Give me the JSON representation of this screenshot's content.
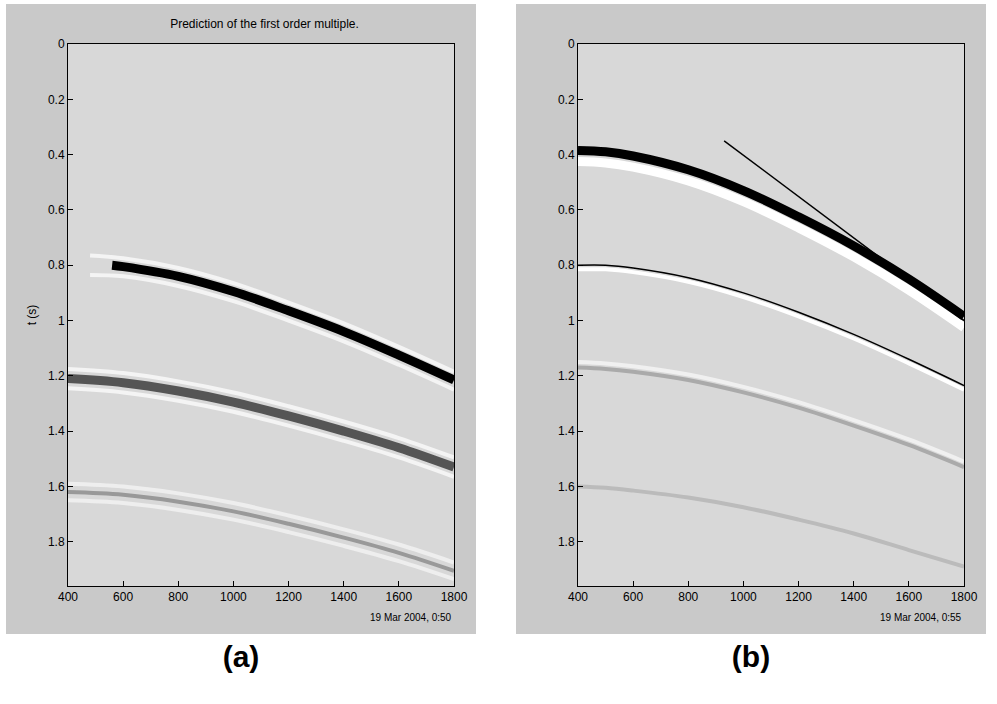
{
  "chart_data": [
    {
      "type": "line",
      "label": "(a)",
      "title": "Prediction of the first order multiple.",
      "ylabel": "t (s)",
      "annotations": [
        "19 Mar 2004, 0:50"
      ],
      "xlim": [
        400,
        1800
      ],
      "xticks": [
        400,
        600,
        800,
        1000,
        1200,
        1400,
        1600,
        1800
      ],
      "ylim": [
        0,
        1.96
      ],
      "yticks": [
        0,
        0.2,
        0.4,
        0.6,
        0.8,
        1,
        1.2,
        1.4,
        1.6,
        1.8
      ],
      "series": [
        {
          "color": "#f4f4f4",
          "line_style": "medium",
          "x": [
            480,
            600,
            800,
            1000,
            1200,
            1400,
            1600,
            1800
          ],
          "values": [
            0.765,
            0.775,
            0.81,
            0.865,
            0.935,
            1.01,
            1.095,
            1.185
          ]
        },
        {
          "color": "#f4f4f4",
          "line_style": "medium",
          "x": [
            480,
            600,
            800,
            1000,
            1200,
            1400,
            1600,
            1800
          ],
          "values": [
            0.835,
            0.84,
            0.875,
            0.93,
            1.0,
            1.075,
            1.16,
            1.25
          ]
        },
        {
          "color": "#000000",
          "line_style": "thick",
          "x": [
            560,
            600,
            800,
            1000,
            1200,
            1400,
            1600,
            1800
          ],
          "values": [
            0.8,
            0.805,
            0.84,
            0.895,
            0.965,
            1.04,
            1.125,
            1.215
          ]
        },
        {
          "color": "#f4f4f4",
          "line_style": "medium",
          "x": [
            400,
            600,
            800,
            1000,
            1200,
            1400,
            1600,
            1800
          ],
          "values": [
            1.175,
            1.19,
            1.22,
            1.26,
            1.31,
            1.365,
            1.425,
            1.495
          ]
        },
        {
          "color": "#f4f4f4",
          "line_style": "medium",
          "x": [
            400,
            600,
            800,
            1000,
            1200,
            1400,
            1600,
            1800
          ],
          "values": [
            1.245,
            1.26,
            1.29,
            1.33,
            1.38,
            1.435,
            1.495,
            1.565
          ]
        },
        {
          "color": "#555555",
          "line_style": "thick",
          "x": [
            400,
            600,
            800,
            1000,
            1200,
            1400,
            1600,
            1800
          ],
          "values": [
            1.21,
            1.225,
            1.255,
            1.295,
            1.345,
            1.4,
            1.46,
            1.53
          ]
        },
        {
          "color": "#eeeeee",
          "line_style": "medium",
          "x": [
            400,
            600,
            800,
            1000,
            1200,
            1400,
            1600,
            1800
          ],
          "values": [
            1.59,
            1.6,
            1.625,
            1.66,
            1.705,
            1.755,
            1.81,
            1.875
          ]
        },
        {
          "color": "#eeeeee",
          "line_style": "medium",
          "x": [
            400,
            600,
            800,
            1000,
            1200,
            1400,
            1600,
            1800
          ],
          "values": [
            1.65,
            1.66,
            1.685,
            1.72,
            1.765,
            1.815,
            1.87,
            1.935
          ]
        },
        {
          "color": "#999999",
          "line_style": "medium",
          "x": [
            400,
            600,
            800,
            1000,
            1200,
            1400,
            1600,
            1800
          ],
          "values": [
            1.62,
            1.63,
            1.655,
            1.69,
            1.735,
            1.785,
            1.84,
            1.905
          ]
        }
      ]
    },
    {
      "type": "line",
      "label": "(b)",
      "annotations": [
        "19 Mar 2004, 0:55"
      ],
      "xlim": [
        400,
        1800
      ],
      "xticks": [
        400,
        600,
        800,
        1000,
        1200,
        1400,
        1600,
        1800
      ],
      "ylim": [
        0,
        1.96
      ],
      "yticks": [
        0,
        0.2,
        0.4,
        0.6,
        0.8,
        1,
        1.2,
        1.4,
        1.6,
        1.8
      ],
      "series": [
        {
          "color": "#ffffff",
          "line_style": "thick",
          "x": [
            400,
            500,
            600,
            800,
            1000,
            1200,
            1400,
            1600,
            1800
          ],
          "values": [
            0.425,
            0.43,
            0.445,
            0.495,
            0.57,
            0.665,
            0.77,
            0.89,
            1.025
          ]
        },
        {
          "color": "#000000",
          "line_style": "thick",
          "x": [
            400,
            500,
            600,
            800,
            1000,
            1200,
            1400,
            1600,
            1800
          ],
          "values": [
            0.385,
            0.39,
            0.405,
            0.455,
            0.53,
            0.625,
            0.73,
            0.85,
            0.985
          ]
        },
        {
          "color": "#000000",
          "line_style": "thin",
          "x": [
            930,
            1800
          ],
          "values": [
            0.35,
            1.0
          ]
        },
        {
          "color": "#ffffff",
          "line_style": "medium",
          "x": [
            400,
            500,
            600,
            800,
            1000,
            1200,
            1400,
            1600,
            1800
          ],
          "values": [
            0.815,
            0.815,
            0.825,
            0.86,
            0.915,
            0.985,
            1.065,
            1.155,
            1.25
          ]
        },
        {
          "color": "#000000",
          "line_style": "thin",
          "x": [
            400,
            500,
            600,
            800,
            1000,
            1200,
            1400,
            1600,
            1800
          ],
          "values": [
            0.8,
            0.8,
            0.81,
            0.845,
            0.9,
            0.97,
            1.05,
            1.14,
            1.235
          ]
        },
        {
          "color": "#f0f0f0",
          "line_style": "medium",
          "x": [
            400,
            500,
            600,
            800,
            1000,
            1200,
            1400,
            1600,
            1800
          ],
          "values": [
            1.15,
            1.155,
            1.165,
            1.195,
            1.24,
            1.295,
            1.36,
            1.43,
            1.51
          ]
        },
        {
          "color": "#aaaaaa",
          "line_style": "medium",
          "x": [
            400,
            500,
            600,
            800,
            1000,
            1200,
            1400,
            1600,
            1800
          ],
          "values": [
            1.17,
            1.175,
            1.185,
            1.215,
            1.26,
            1.315,
            1.38,
            1.45,
            1.53
          ]
        },
        {
          "color": "#bbbbbb",
          "line_style": "medium",
          "x": [
            400,
            500,
            600,
            800,
            1000,
            1200,
            1400,
            1600,
            1800
          ],
          "values": [
            1.6,
            1.605,
            1.615,
            1.64,
            1.675,
            1.72,
            1.77,
            1.83,
            1.89
          ]
        }
      ]
    }
  ]
}
